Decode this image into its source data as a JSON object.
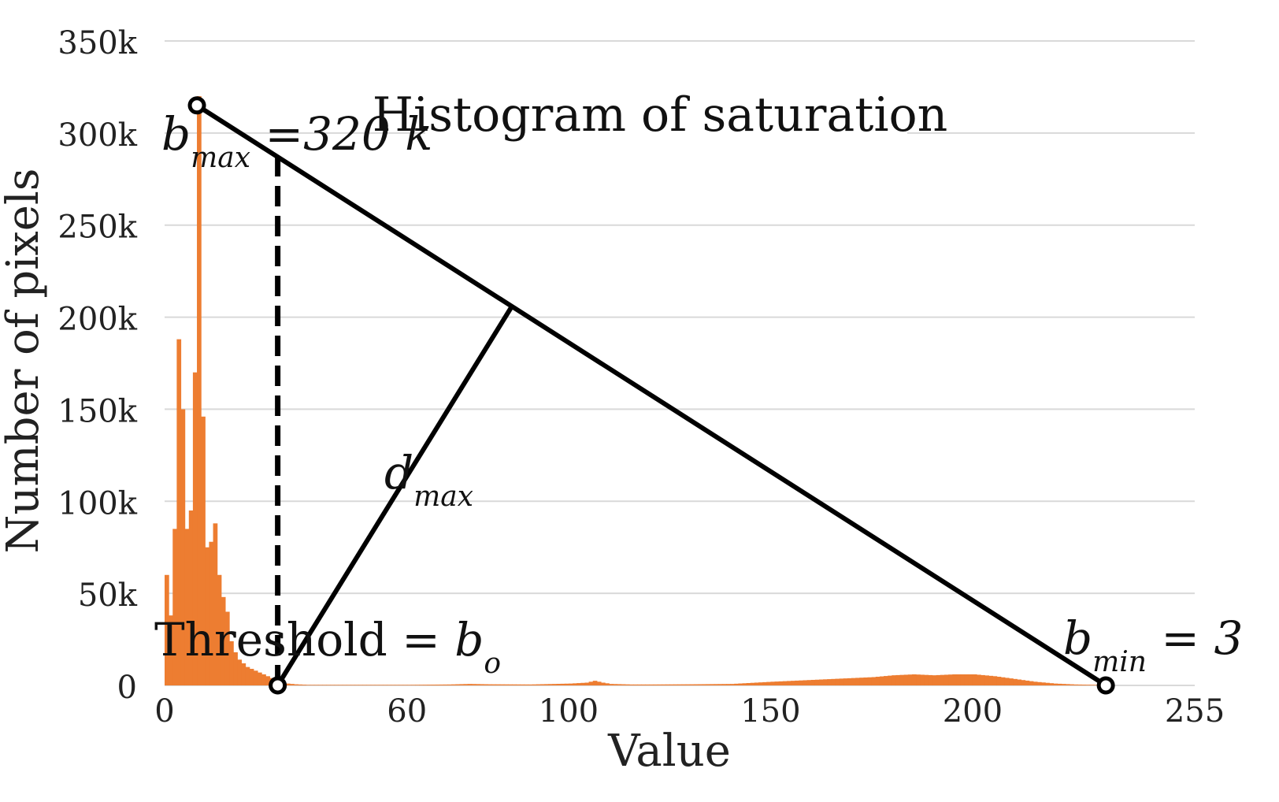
{
  "chart_data": {
    "type": "bar",
    "title": "Histogram of saturation",
    "xlabel": "Value",
    "ylabel": "Number of pixels",
    "xlim": [
      0,
      255
    ],
    "ylim": [
      0,
      350000
    ],
    "x_ticks": [
      0,
      60,
      100,
      150,
      200,
      255
    ],
    "x_tick_labels": [
      "0",
      "60",
      "100",
      "150",
      "200",
      "255"
    ],
    "y_ticks": [
      0,
      50000,
      100000,
      150000,
      200000,
      250000,
      300000,
      350000
    ],
    "y_tick_labels": [
      "0",
      "50k",
      "100k",
      "150k",
      "200k",
      "250k",
      "300k",
      "350k"
    ],
    "grid": true,
    "bar_color": "#ed7d31",
    "bins": [
      {
        "x": 0,
        "y": 60000
      },
      {
        "x": 1,
        "y": 38000
      },
      {
        "x": 2,
        "y": 85000
      },
      {
        "x": 3,
        "y": 188000
      },
      {
        "x": 4,
        "y": 150000
      },
      {
        "x": 5,
        "y": 85000
      },
      {
        "x": 6,
        "y": 95000
      },
      {
        "x": 7,
        "y": 170000
      },
      {
        "x": 8,
        "y": 320000
      },
      {
        "x": 9,
        "y": 146000
      },
      {
        "x": 10,
        "y": 75000
      },
      {
        "x": 11,
        "y": 78000
      },
      {
        "x": 12,
        "y": 88000
      },
      {
        "x": 13,
        "y": 60000
      },
      {
        "x": 14,
        "y": 48000
      },
      {
        "x": 15,
        "y": 40000
      },
      {
        "x": 16,
        "y": 24000
      },
      {
        "x": 17,
        "y": 18000
      },
      {
        "x": 18,
        "y": 14000
      },
      {
        "x": 19,
        "y": 12000
      },
      {
        "x": 20,
        "y": 10000
      },
      {
        "x": 21,
        "y": 9000
      },
      {
        "x": 22,
        "y": 8000
      },
      {
        "x": 23,
        "y": 7000
      },
      {
        "x": 24,
        "y": 6000
      },
      {
        "x": 25,
        "y": 5000
      },
      {
        "x": 26,
        "y": 4000
      },
      {
        "x": 27,
        "y": 3000
      },
      {
        "x": 28,
        "y": 2000
      },
      {
        "x": 29,
        "y": 1500
      },
      {
        "x": 30,
        "y": 1000
      },
      {
        "x": 31,
        "y": 800
      },
      {
        "x": 32,
        "y": 600
      },
      {
        "x": 33,
        "y": 500
      },
      {
        "x": 34,
        "y": 400
      },
      {
        "x": 35,
        "y": 300
      },
      {
        "x": 40,
        "y": 300
      },
      {
        "x": 50,
        "y": 300
      },
      {
        "x": 60,
        "y": 300
      },
      {
        "x": 70,
        "y": 500
      },
      {
        "x": 75,
        "y": 800
      },
      {
        "x": 80,
        "y": 600
      },
      {
        "x": 90,
        "y": 500
      },
      {
        "x": 100,
        "y": 1000
      },
      {
        "x": 104,
        "y": 1500
      },
      {
        "x": 106,
        "y": 2500
      },
      {
        "x": 108,
        "y": 1500
      },
      {
        "x": 110,
        "y": 800
      },
      {
        "x": 115,
        "y": 500
      },
      {
        "x": 120,
        "y": 500
      },
      {
        "x": 130,
        "y": 600
      },
      {
        "x": 140,
        "y": 800
      },
      {
        "x": 150,
        "y": 2000
      },
      {
        "x": 155,
        "y": 2500
      },
      {
        "x": 160,
        "y": 3000
      },
      {
        "x": 165,
        "y": 3500
      },
      {
        "x": 170,
        "y": 4000
      },
      {
        "x": 175,
        "y": 4500
      },
      {
        "x": 180,
        "y": 5500
      },
      {
        "x": 185,
        "y": 6000
      },
      {
        "x": 190,
        "y": 5500
      },
      {
        "x": 195,
        "y": 6000
      },
      {
        "x": 200,
        "y": 6000
      },
      {
        "x": 205,
        "y": 5000
      },
      {
        "x": 210,
        "y": 3500
      },
      {
        "x": 215,
        "y": 2000
      },
      {
        "x": 220,
        "y": 1000
      },
      {
        "x": 225,
        "y": 500
      },
      {
        "x": 230,
        "y": 300
      }
    ],
    "annotations": {
      "peak_point": {
        "x": 8,
        "y": 315000
      },
      "min_point": {
        "x": 233,
        "y": 0
      },
      "threshold_point": {
        "x": 28,
        "y": 0
      },
      "foot_point": {
        "x": 86,
        "y": 206000
      },
      "threshold_line_top": {
        "x": 28,
        "y": 288000
      },
      "bmax_label": {
        "main": "b",
        "sub": "max",
        "rest": " =320 k"
      },
      "bmin_label": {
        "main": "b",
        "sub": "min",
        "rest": " = 3"
      },
      "dmax_label": {
        "main": "d",
        "sub": "max"
      },
      "threshold_label": {
        "prefix": "Threshold = ",
        "main": "b",
        "sub": "o"
      }
    }
  }
}
